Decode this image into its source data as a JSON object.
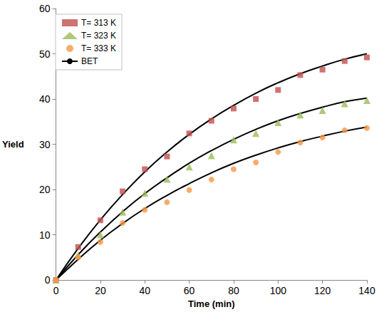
{
  "chart_data": {
    "type": "scatter",
    "x_label": "Time (min)",
    "y_label": "Yield",
    "x": [
      0,
      10,
      20,
      30,
      40,
      50,
      60,
      70,
      80,
      90,
      100,
      110,
      120,
      130,
      140
    ],
    "series": [
      {
        "name": "T= 313 K",
        "type": "scatter",
        "marker": "square",
        "color": "#c0504d",
        "values": [
          0,
          7.3,
          13.2,
          19.6,
          24.5,
          27.3,
          32.4,
          35.2,
          37.9,
          40,
          42,
          45.3,
          46.5,
          48.4,
          49.2
        ]
      },
      {
        "name": "T= 323 K",
        "type": "scatter",
        "marker": "triangle",
        "color": "#9bbb59",
        "values": [
          0,
          5.5,
          10,
          15,
          19.2,
          22.3,
          25,
          27.5,
          31,
          32.4,
          34.8,
          36.5,
          37.5,
          39,
          39.7
        ]
      },
      {
        "name": "T= 333 K",
        "type": "scatter",
        "marker": "circle",
        "color": "#f79646",
        "values": [
          0,
          5,
          8.4,
          12.6,
          15.5,
          17.2,
          19.9,
          22.2,
          24.5,
          26,
          28.3,
          30.4,
          31.5,
          33.1,
          33.6
        ]
      },
      {
        "name": "BET",
        "type": "line",
        "marker": "none",
        "color": "#000000",
        "values": [
          0,
          7,
          13.3,
          18.9,
          23.9,
          28.3,
          32.2,
          35.6,
          38.6,
          41.3,
          43.6,
          45.6,
          47.3,
          48.8,
          50
        ]
      },
      {
        "name": "BET",
        "type": "line",
        "marker": "none",
        "color": "#000000",
        "values": [
          0,
          5.6,
          10.6,
          15.1,
          19.1,
          22.6,
          25.8,
          28.6,
          31.1,
          33.3,
          35.2,
          36.8,
          38.2,
          39.4,
          40.2
        ]
      },
      {
        "name": "BET",
        "type": "line",
        "marker": "none",
        "color": "#000000",
        "values": [
          0,
          4.6,
          8.8,
          12.5,
          15.8,
          18.7,
          21.3,
          23.7,
          25.8,
          27.6,
          29.2,
          30.6,
          31.8,
          32.9,
          33.8
        ]
      }
    ],
    "xlim": [
      0,
      140
    ],
    "xticks": [
      0,
      20,
      40,
      60,
      80,
      100,
      120,
      140
    ],
    "ylim": [
      0,
      60
    ],
    "yticks": [
      0,
      10,
      20,
      30,
      40,
      50,
      60
    ],
    "grid": false,
    "legend": "upper left"
  }
}
